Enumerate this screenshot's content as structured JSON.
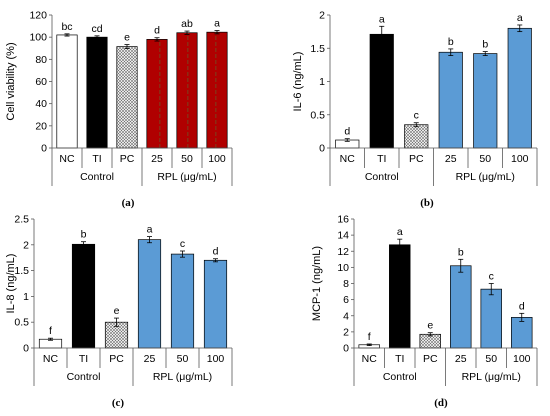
{
  "chart_data": [
    {
      "type": "bar",
      "panel_label": "(a)",
      "ylabel": "Cell viability (%)",
      "ylim": [
        0,
        120
      ],
      "ticks": [
        0,
        20,
        40,
        60,
        80,
        100,
        120
      ],
      "categories": [
        "NC",
        "TI",
        "PC",
        "25",
        "50",
        "100"
      ],
      "values": [
        102,
        100,
        91.5,
        98,
        104,
        104.5
      ],
      "errors": [
        1.0,
        1.2,
        1.8,
        1.5,
        1.5,
        1.5
      ],
      "letters": [
        "bc",
        "cd",
        "e",
        "d",
        "ab",
        "a"
      ],
      "group_labels": [
        "Control",
        "RPL (μg/mL)"
      ]
    },
    {
      "type": "bar",
      "panel_label": "(b)",
      "ylabel": "IL-6 (ng/mL)",
      "ylim": [
        0,
        2
      ],
      "ticks": [
        0,
        0.5,
        1,
        1.5,
        2
      ],
      "categories": [
        "NC",
        "TI",
        "PC",
        "25",
        "50",
        "100"
      ],
      "values": [
        0.12,
        1.71,
        0.35,
        1.44,
        1.42,
        1.8
      ],
      "errors": [
        0.02,
        0.12,
        0.03,
        0.05,
        0.03,
        0.05
      ],
      "letters": [
        "d",
        "a",
        "c",
        "b",
        "b",
        "a"
      ],
      "group_labels": [
        "Control",
        "RPL (μg/mL)"
      ]
    },
    {
      "type": "bar",
      "panel_label": "(c)",
      "ylabel": "IL-8 (ng/mL)",
      "ylim": [
        0,
        2.5
      ],
      "ticks": [
        0,
        0.5,
        1,
        1.5,
        2,
        2.5
      ],
      "categories": [
        "NC",
        "TI",
        "PC",
        "25",
        "50",
        "100"
      ],
      "values": [
        0.17,
        2.01,
        0.5,
        2.1,
        1.82,
        1.7
      ],
      "errors": [
        0.02,
        0.05,
        0.08,
        0.06,
        0.06,
        0.03
      ],
      "letters": [
        "f",
        "b",
        "e",
        "a",
        "c",
        "d"
      ],
      "group_labels": [
        "Control",
        "RPL (μg/mL)"
      ]
    },
    {
      "type": "bar",
      "panel_label": "(d)",
      "ylabel": "MCP-1 (ng/mL)",
      "ylim": [
        0,
        16
      ],
      "ticks": [
        0,
        2,
        4,
        6,
        8,
        10,
        12,
        14,
        16
      ],
      "categories": [
        "NC",
        "TI",
        "PC",
        "25",
        "50",
        "100"
      ],
      "values": [
        0.4,
        12.8,
        1.7,
        10.2,
        7.3,
        3.8
      ],
      "errors": [
        0.1,
        0.7,
        0.2,
        0.8,
        0.7,
        0.5
      ],
      "letters": [
        "f",
        "a",
        "e",
        "b",
        "c",
        "d"
      ],
      "group_labels": [
        "Control",
        "RPL (μg/mL)"
      ]
    }
  ],
  "colors": {
    "nc_fill": "#ffffff",
    "ti_fill": "#000000",
    "pc_fill": "#c8c8c8",
    "rpl_fill_a": "#b00000",
    "rpl_fill_other": "#5b9bd5",
    "axis": "#595959",
    "text": "#000000"
  }
}
